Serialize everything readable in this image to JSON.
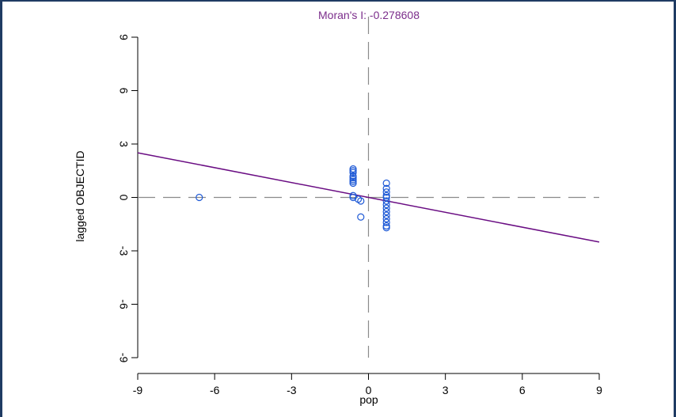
{
  "chart_data": {
    "type": "scatter",
    "title": "Moran's I: -0.278608",
    "xlabel": "pop",
    "ylabel": "lagged OBJECTID",
    "xlim": [
      -9,
      9
    ],
    "ylim": [
      -9,
      9
    ],
    "x_ticks": [
      -9,
      -6,
      -3,
      0,
      3,
      6,
      9
    ],
    "y_ticks": [
      -9,
      -6,
      -3,
      0,
      3,
      6,
      9
    ],
    "x_tick_labels": [
      "-9",
      "-6",
      "-3",
      "0",
      "3",
      "6",
      "9"
    ],
    "y_tick_labels": [
      "-9",
      "-6",
      "-3",
      "0",
      "3",
      "6",
      "9"
    ],
    "grid": false,
    "reference_lines": {
      "x": 0,
      "y": 0,
      "style": "dashed"
    },
    "regression_line": {
      "slope": -0.278608,
      "intercept": 0
    },
    "points": [
      {
        "x": -6.6,
        "y": 0.0
      },
      {
        "x": -0.6,
        "y": 1.6
      },
      {
        "x": -0.6,
        "y": 1.5
      },
      {
        "x": -0.6,
        "y": 1.4
      },
      {
        "x": -0.6,
        "y": 1.2
      },
      {
        "x": -0.6,
        "y": 1.1
      },
      {
        "x": -0.6,
        "y": 1.0
      },
      {
        "x": -0.6,
        "y": 0.9
      },
      {
        "x": -0.6,
        "y": 0.8
      },
      {
        "x": -0.6,
        "y": 0.1
      },
      {
        "x": -0.6,
        "y": 0.0
      },
      {
        "x": -0.4,
        "y": -0.1
      },
      {
        "x": -0.3,
        "y": -0.2
      },
      {
        "x": -0.3,
        "y": -1.1
      },
      {
        "x": 0.7,
        "y": 0.8
      },
      {
        "x": 0.7,
        "y": 0.5
      },
      {
        "x": 0.7,
        "y": 0.3
      },
      {
        "x": 0.7,
        "y": 0.1
      },
      {
        "x": 0.7,
        "y": 0.0
      },
      {
        "x": 0.7,
        "y": -0.2
      },
      {
        "x": 0.7,
        "y": -0.4
      },
      {
        "x": 0.7,
        "y": -0.6
      },
      {
        "x": 0.7,
        "y": -0.8
      },
      {
        "x": 0.7,
        "y": -1.0
      },
      {
        "x": 0.7,
        "y": -1.2
      },
      {
        "x": 0.7,
        "y": -1.4
      },
      {
        "x": 0.7,
        "y": -1.6
      },
      {
        "x": 0.7,
        "y": -1.7
      }
    ]
  },
  "colors": {
    "title": "#7b2d8b",
    "regression_line": "#6a0d83",
    "points": "#1f5ad6",
    "reference_lines": "#8a8a8a",
    "axis": "#000000",
    "frame_border": "#1f3b63"
  }
}
